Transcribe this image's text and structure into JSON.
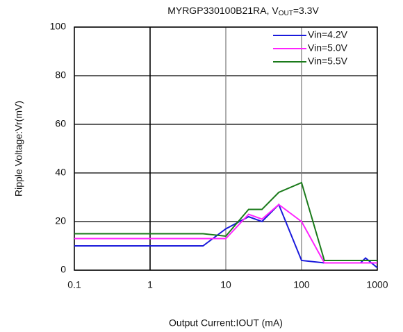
{
  "chart_data": {
    "type": "line",
    "title_parts": [
      "MYRGP330100B21RA, V",
      "OUT",
      "=3.3V"
    ],
    "x_label": "Output Current:IOUT (mA)",
    "y_label": "Ripple Voltage:Vr(mV)",
    "xscale": "log",
    "xlim": [
      0.1,
      1000
    ],
    "xticks": [
      0.1,
      1,
      10,
      100,
      1000
    ],
    "ylim": [
      0,
      100
    ],
    "yticks": [
      0,
      20,
      40,
      60,
      80,
      100
    ],
    "grid": true,
    "legend": "upper right",
    "series": [
      {
        "name": "Vin=4.2V",
        "color": "#1a1adc",
        "x": [
          0.1,
          5,
          10,
          20,
          30,
          50,
          100,
          200,
          600,
          700,
          1000
        ],
        "values": [
          10,
          10,
          17,
          22,
          20,
          27,
          4,
          3,
          3,
          5,
          1
        ]
      },
      {
        "name": "Vin=5.0V",
        "color": "#ff22ff",
        "x": [
          0.1,
          10,
          20,
          30,
          50,
          100,
          200,
          1000
        ],
        "values": [
          13,
          13,
          23,
          21,
          27,
          20,
          3,
          3
        ]
      },
      {
        "name": "Vin=5.5V",
        "color": "#1a7a1a",
        "x": [
          0.1,
          5,
          10,
          20,
          30,
          50,
          100,
          200,
          1000
        ],
        "values": [
          15,
          15,
          14,
          25,
          25,
          32,
          36,
          4,
          4
        ]
      }
    ]
  }
}
